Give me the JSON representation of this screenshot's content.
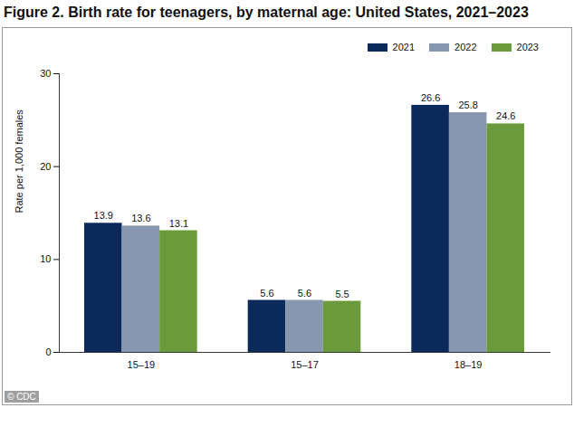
{
  "chart_data": {
    "type": "bar",
    "title": "Figure 2. Birth rate for teenagers, by maternal age: United States, 2021–2023",
    "y_label": "Rate per 1,000 females",
    "categories": [
      "15–19",
      "15–17",
      "18–19"
    ],
    "series": [
      {
        "name": "2021",
        "color": "#0b2a5b",
        "values": [
          13.9,
          5.6,
          26.6
        ]
      },
      {
        "name": "2022",
        "color": "#8897b0",
        "values": [
          13.6,
          5.6,
          25.8
        ]
      },
      {
        "name": "2023",
        "color": "#6b9a3c",
        "values": [
          13.1,
          5.5,
          24.6
        ]
      }
    ],
    "ylim": [
      0,
      30
    ],
    "yticks": [
      0,
      10,
      20,
      30
    ],
    "grid": false,
    "legend": "top-right",
    "data_labels": true,
    "credit": "© CDC"
  }
}
